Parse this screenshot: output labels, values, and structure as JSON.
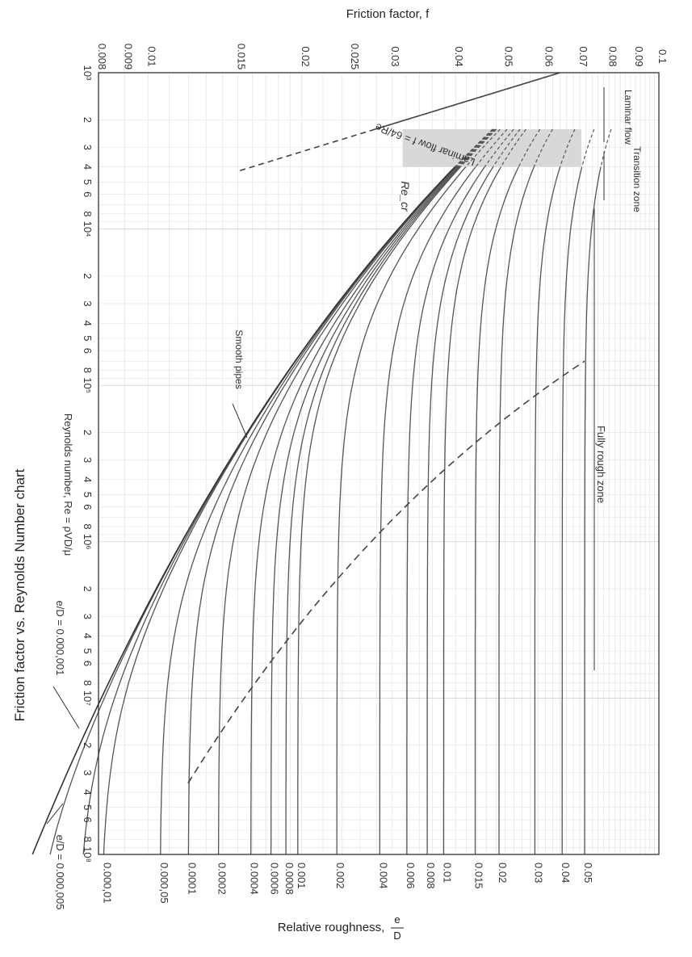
{
  "chart_data": {
    "type": "line",
    "title": "Friction factor vs. Reynolds Number chart",
    "xlabel": "Reynolds number, Re = ρVD/μ",
    "ylabel": "Friction factor, f",
    "right_label": "Relative roughness, e/D",
    "x_scale": "log",
    "y_scale": "log",
    "xlim": [
      1000,
      100000000
    ],
    "ylim": [
      0.008,
      0.1
    ],
    "x_ticks": [
      {
        "v": 1000,
        "t": "10³"
      },
      {
        "v": 2000,
        "t": "2"
      },
      {
        "v": 3000,
        "t": "3"
      },
      {
        "v": 4000,
        "t": "4"
      },
      {
        "v": 5000,
        "t": "5"
      },
      {
        "v": 6000,
        "t": "6"
      },
      {
        "v": 8000,
        "t": "8"
      },
      {
        "v": 10000,
        "t": "10⁴"
      },
      {
        "v": 20000,
        "t": "2"
      },
      {
        "v": 30000,
        "t": "3"
      },
      {
        "v": 40000,
        "t": "4"
      },
      {
        "v": 50000,
        "t": "5"
      },
      {
        "v": 60000,
        "t": "6"
      },
      {
        "v": 80000,
        "t": "8"
      },
      {
        "v": 100000,
        "t": "10⁵"
      },
      {
        "v": 200000,
        "t": "2"
      },
      {
        "v": 300000,
        "t": "3"
      },
      {
        "v": 400000,
        "t": "4"
      },
      {
        "v": 500000,
        "t": "5"
      },
      {
        "v": 600000,
        "t": "6"
      },
      {
        "v": 800000,
        "t": "8"
      },
      {
        "v": 1000000,
        "t": "10⁶"
      },
      {
        "v": 2000000,
        "t": "2"
      },
      {
        "v": 3000000,
        "t": "3"
      },
      {
        "v": 4000000,
        "t": "4"
      },
      {
        "v": 5000000,
        "t": "5"
      },
      {
        "v": 6000000,
        "t": "6"
      },
      {
        "v": 8000000,
        "t": "8"
      },
      {
        "v": 10000000,
        "t": "10⁷"
      },
      {
        "v": 20000000,
        "t": "2"
      },
      {
        "v": 30000000,
        "t": "3"
      },
      {
        "v": 40000000,
        "t": "4"
      },
      {
        "v": 50000000,
        "t": "5"
      },
      {
        "v": 60000000,
        "t": "6"
      },
      {
        "v": 80000000,
        "t": "8"
      },
      {
        "v": 100000000,
        "t": "10⁸"
      }
    ],
    "y_ticks": [
      {
        "v": 0.1,
        "t": "0.1"
      },
      {
        "v": 0.09,
        "t": "0.09"
      },
      {
        "v": 0.08,
        "t": "0.08"
      },
      {
        "v": 0.07,
        "t": "0.07"
      },
      {
        "v": 0.06,
        "t": "0.06"
      },
      {
        "v": 0.05,
        "t": "0.05"
      },
      {
        "v": 0.04,
        "t": "0.04"
      },
      {
        "v": 0.03,
        "t": "0.03"
      },
      {
        "v": 0.025,
        "t": "0.025"
      },
      {
        "v": 0.02,
        "t": "0.02"
      },
      {
        "v": 0.015,
        "t": "0.015"
      },
      {
        "v": 0.01,
        "t": "0.01"
      },
      {
        "v": 0.009,
        "t": "0.009"
      },
      {
        "v": 0.008,
        "t": "0.008"
      }
    ],
    "roughness": [
      {
        "eD": 0.05,
        "label": "0.05"
      },
      {
        "eD": 0.04,
        "label": "0.04"
      },
      {
        "eD": 0.03,
        "label": "0.03"
      },
      {
        "eD": 0.02,
        "label": "0.02"
      },
      {
        "eD": 0.015,
        "label": "0.015"
      },
      {
        "eD": 0.01,
        "label": "0.01"
      },
      {
        "eD": 0.008,
        "label": "0.008"
      },
      {
        "eD": 0.006,
        "label": "0.006"
      },
      {
        "eD": 0.004,
        "label": "0.004"
      },
      {
        "eD": 0.002,
        "label": "0.002"
      },
      {
        "eD": 0.001,
        "label": "0.001"
      },
      {
        "eD": 0.0008,
        "label": "0.0008"
      },
      {
        "eD": 0.0006,
        "label": "0.0006"
      },
      {
        "eD": 0.0004,
        "label": "0.0004"
      },
      {
        "eD": 0.0002,
        "label": "0.0002"
      },
      {
        "eD": 0.0001,
        "label": "0.0001"
      },
      {
        "eD": 5e-05,
        "label": "0.000,05"
      },
      {
        "eD": 1e-05,
        "label": "0.000,01"
      },
      {
        "eD": 5e-06,
        "label": ""
      },
      {
        "eD": 1e-06,
        "label": ""
      }
    ],
    "laminar": {
      "label": "Laminar flow f = 64/Re",
      "re_range": [
        1000,
        10000
      ]
    },
    "annotations": {
      "laminar_flow": "Laminar flow",
      "transition_zone": "Transition zone",
      "fully_rough_zone": "Fully rough zone",
      "re_cr": "Re_cr",
      "smooth_pipes": "Smooth pipes",
      "ed_small": "e/D = 0.000,001",
      "ed_small2": "e/D = 0.000,005"
    },
    "grid": true
  },
  "text": {
    "ylabel": "Friction factor, f",
    "right_label": "Relative roughness,",
    "right_label_frac_num": "e",
    "right_label_frac_den": "D",
    "caption": "Friction factor vs. Reynolds Number chart",
    "xlabel": "Reynolds number, Re = ρVD/μ",
    "laminar_flow": "Laminar flow",
    "laminar_eq": "Laminar flow f = 64/Re",
    "transition_zone": "Transition zone",
    "fully_rough_zone": "Fully rough zone",
    "re_cr": "Re_cr",
    "smooth_pipes": "Smooth pipes",
    "ed_small": "e/D = 0.000,001",
    "ed_small2": "e/D = 0.000,005"
  }
}
